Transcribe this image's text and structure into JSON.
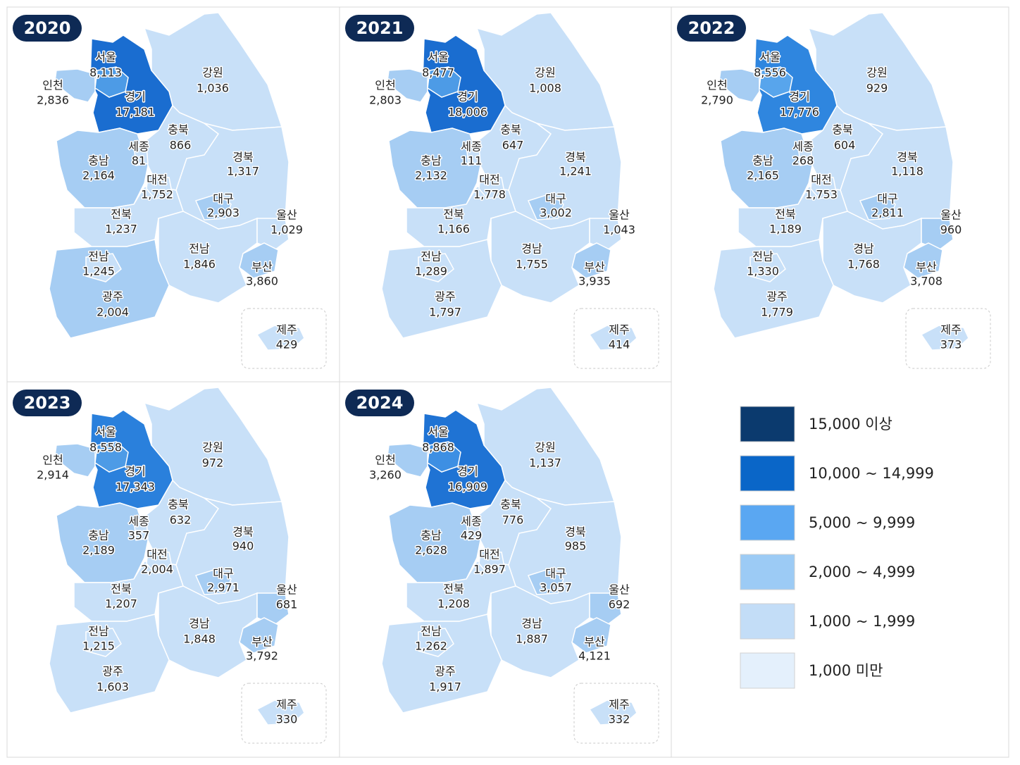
{
  "panels": [
    {
      "year": "2020",
      "regions": [
        {
          "name": "서울",
          "value": "8,113",
          "color": "#4d9be6"
        },
        {
          "name": "인천",
          "value": "2,836",
          "color": "#a6cdf3"
        },
        {
          "name": "경기",
          "value": "17,181",
          "color": "#1a6dd0"
        },
        {
          "name": "강원",
          "value": "1,036",
          "color": "#c8e0f8"
        },
        {
          "name": "충북",
          "value": "866",
          "color": "#c8e0f8"
        },
        {
          "name": "세종",
          "value": "81",
          "color": "#c8e0f8"
        },
        {
          "name": "충남",
          "value": "2,164",
          "color": "#a6cdf3"
        },
        {
          "name": "대전",
          "value": "1,752",
          "color": "#c8e0f8"
        },
        {
          "name": "경북",
          "value": "1,317",
          "color": "#c8e0f8"
        },
        {
          "name": "대구",
          "value": "2,903",
          "color": "#a6cdf3"
        },
        {
          "name": "울산",
          "value": "1,029",
          "color": "#c8e0f8"
        },
        {
          "name": "전북",
          "value": "1,237",
          "color": "#c8e0f8"
        },
        {
          "name": "전남",
          "value": "1,846",
          "color": "#c8e0f8"
        },
        {
          "name": "부산",
          "value": "3,860",
          "color": "#a6cdf3"
        },
        {
          "name": "광주",
          "value": "2,004",
          "color": "#a6cdf3"
        },
        {
          "name": "전남",
          "value": "1,245",
          "color": "#c8e0f8"
        },
        {
          "name": "제주",
          "value": "429",
          "color": "#c8e0f8"
        }
      ]
    },
    {
      "year": "2021",
      "regions": [
        {
          "name": "서울",
          "value": "8,477",
          "color": "#4d9be6"
        },
        {
          "name": "인천",
          "value": "2,803",
          "color": "#a6cdf3"
        },
        {
          "name": "경기",
          "value": "18,006",
          "color": "#1a6dd0"
        },
        {
          "name": "강원",
          "value": "1,008",
          "color": "#c8e0f8"
        },
        {
          "name": "충북",
          "value": "647",
          "color": "#c8e0f8"
        },
        {
          "name": "세종",
          "value": "111",
          "color": "#c8e0f8"
        },
        {
          "name": "충남",
          "value": "2,132",
          "color": "#a6cdf3"
        },
        {
          "name": "대전",
          "value": "1,778",
          "color": "#c8e0f8"
        },
        {
          "name": "경북",
          "value": "1,241",
          "color": "#c8e0f8"
        },
        {
          "name": "대구",
          "value": "3,002",
          "color": "#a6cdf3"
        },
        {
          "name": "울산",
          "value": "1,043",
          "color": "#c8e0f8"
        },
        {
          "name": "전북",
          "value": "1,166",
          "color": "#c8e0f8"
        },
        {
          "name": "경남",
          "value": "1,755",
          "color": "#c8e0f8"
        },
        {
          "name": "부산",
          "value": "3,935",
          "color": "#a6cdf3"
        },
        {
          "name": "광주",
          "value": "1,797",
          "color": "#c8e0f8"
        },
        {
          "name": "전남",
          "value": "1,289",
          "color": "#c8e0f8"
        },
        {
          "name": "제주",
          "value": "414",
          "color": "#c8e0f8"
        }
      ]
    },
    {
      "year": "2022",
      "regions": [
        {
          "name": "서울",
          "value": "8,556",
          "color": "#58a5ec"
        },
        {
          "name": "인천",
          "value": "2,790",
          "color": "#a6cdf3"
        },
        {
          "name": "경기",
          "value": "17,776",
          "color": "#2f86df"
        },
        {
          "name": "강원",
          "value": "929",
          "color": "#c8e0f8"
        },
        {
          "name": "충북",
          "value": "604",
          "color": "#c8e0f8"
        },
        {
          "name": "세종",
          "value": "268",
          "color": "#c8e0f8"
        },
        {
          "name": "충남",
          "value": "2,165",
          "color": "#a6cdf3"
        },
        {
          "name": "대전",
          "value": "1,753",
          "color": "#c8e0f8"
        },
        {
          "name": "경북",
          "value": "1,118",
          "color": "#c8e0f8"
        },
        {
          "name": "대구",
          "value": "2,811",
          "color": "#a6cdf3"
        },
        {
          "name": "울산",
          "value": "960",
          "color": "#a6cdf3"
        },
        {
          "name": "전북",
          "value": "1,189",
          "color": "#c8e0f8"
        },
        {
          "name": "경남",
          "value": "1,768",
          "color": "#c8e0f8"
        },
        {
          "name": "부산",
          "value": "3,708",
          "color": "#a6cdf3"
        },
        {
          "name": "광주",
          "value": "1,779",
          "color": "#c8e0f8"
        },
        {
          "name": "전남",
          "value": "1,330",
          "color": "#c8e0f8"
        },
        {
          "name": "제주",
          "value": "373",
          "color": "#c8e0f8"
        }
      ]
    },
    {
      "year": "2023",
      "regions": [
        {
          "name": "서울",
          "value": "8,558",
          "color": "#4d9be6"
        },
        {
          "name": "인천",
          "value": "2,914",
          "color": "#a6cdf3"
        },
        {
          "name": "경기",
          "value": "17,343",
          "color": "#2a80dc"
        },
        {
          "name": "강원",
          "value": "972",
          "color": "#c8e0f8"
        },
        {
          "name": "충북",
          "value": "632",
          "color": "#c8e0f8"
        },
        {
          "name": "세종",
          "value": "357",
          "color": "#c8e0f8"
        },
        {
          "name": "충남",
          "value": "2,189",
          "color": "#a6cdf3"
        },
        {
          "name": "대전",
          "value": "2,004",
          "color": "#c8e0f8"
        },
        {
          "name": "경북",
          "value": "940",
          "color": "#c8e0f8"
        },
        {
          "name": "대구",
          "value": "2,971",
          "color": "#a6cdf3"
        },
        {
          "name": "울산",
          "value": "681",
          "color": "#a6cdf3"
        },
        {
          "name": "전북",
          "value": "1,207",
          "color": "#c8e0f8"
        },
        {
          "name": "경남",
          "value": "1,848",
          "color": "#c8e0f8"
        },
        {
          "name": "부산",
          "value": "3,792",
          "color": "#a6cdf3"
        },
        {
          "name": "광주",
          "value": "1,603",
          "color": "#c8e0f8"
        },
        {
          "name": "전남",
          "value": "1,215",
          "color": "#c8e0f8"
        },
        {
          "name": "제주",
          "value": "330",
          "color": "#c8e0f8"
        }
      ]
    },
    {
      "year": "2024",
      "regions": [
        {
          "name": "서울",
          "value": "8,868",
          "color": "#3d8fe3"
        },
        {
          "name": "인천",
          "value": "3,260",
          "color": "#a6cdf3"
        },
        {
          "name": "경기",
          "value": "16,909",
          "color": "#1f73d4"
        },
        {
          "name": "강원",
          "value": "1,137",
          "color": "#c8e0f8"
        },
        {
          "name": "충북",
          "value": "776",
          "color": "#c8e0f8"
        },
        {
          "name": "세종",
          "value": "429",
          "color": "#c8e0f8"
        },
        {
          "name": "충남",
          "value": "2,628",
          "color": "#a6cdf3"
        },
        {
          "name": "대전",
          "value": "1,897",
          "color": "#c8e0f8"
        },
        {
          "name": "경북",
          "value": "985",
          "color": "#c8e0f8"
        },
        {
          "name": "대구",
          "value": "3,057",
          "color": "#a6cdf3"
        },
        {
          "name": "울산",
          "value": "692",
          "color": "#a6cdf3"
        },
        {
          "name": "전북",
          "value": "1,208",
          "color": "#c8e0f8"
        },
        {
          "name": "경남",
          "value": "1,887",
          "color": "#c8e0f8"
        },
        {
          "name": "부산",
          "value": "4,121",
          "color": "#a6cdf3"
        },
        {
          "name": "광주",
          "value": "1,917",
          "color": "#c8e0f8"
        },
        {
          "name": "전남",
          "value": "1,262",
          "color": "#c8e0f8"
        },
        {
          "name": "제주",
          "value": "332",
          "color": "#c8e0f8"
        }
      ]
    }
  ],
  "legend": [
    {
      "label": "15,000 이상",
      "color": "#0b3a6e"
    },
    {
      "label": "10,000 ~ 14,999",
      "color": "#0a66c8"
    },
    {
      "label": "5,000 ~ 9,999",
      "color": "#5aa7f2"
    },
    {
      "label": "2,000 ~ 4,999",
      "color": "#9ccbf5"
    },
    {
      "label": "1,000 ~ 1,999",
      "color": "#c3ddf7"
    },
    {
      "label": "1,000 미만",
      "color": "#e4f0fc"
    }
  ]
}
